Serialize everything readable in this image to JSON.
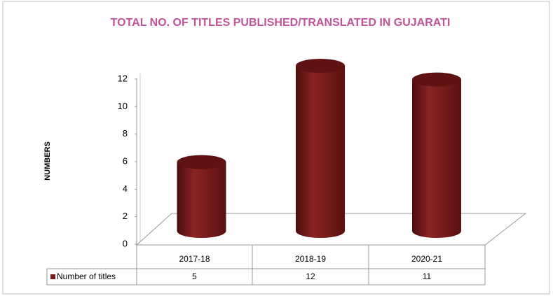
{
  "chart_data": {
    "type": "cylinder-bar",
    "title": "TOTAL NO. OF TITLES PUBLISHED/TRANSLATED  IN  GUJARATI",
    "y_label": "NUMBERS",
    "categories": [
      "2017-18",
      "2018-19",
      "2020-21"
    ],
    "series": [
      {
        "name": "Number of titles",
        "color": "#7b1a1a",
        "values": [
          5,
          12,
          11
        ]
      }
    ],
    "ylim": [
      0,
      12
    ],
    "yticks": [
      0,
      2,
      4,
      6,
      8,
      10,
      12
    ],
    "grid": false,
    "data_table": true
  }
}
